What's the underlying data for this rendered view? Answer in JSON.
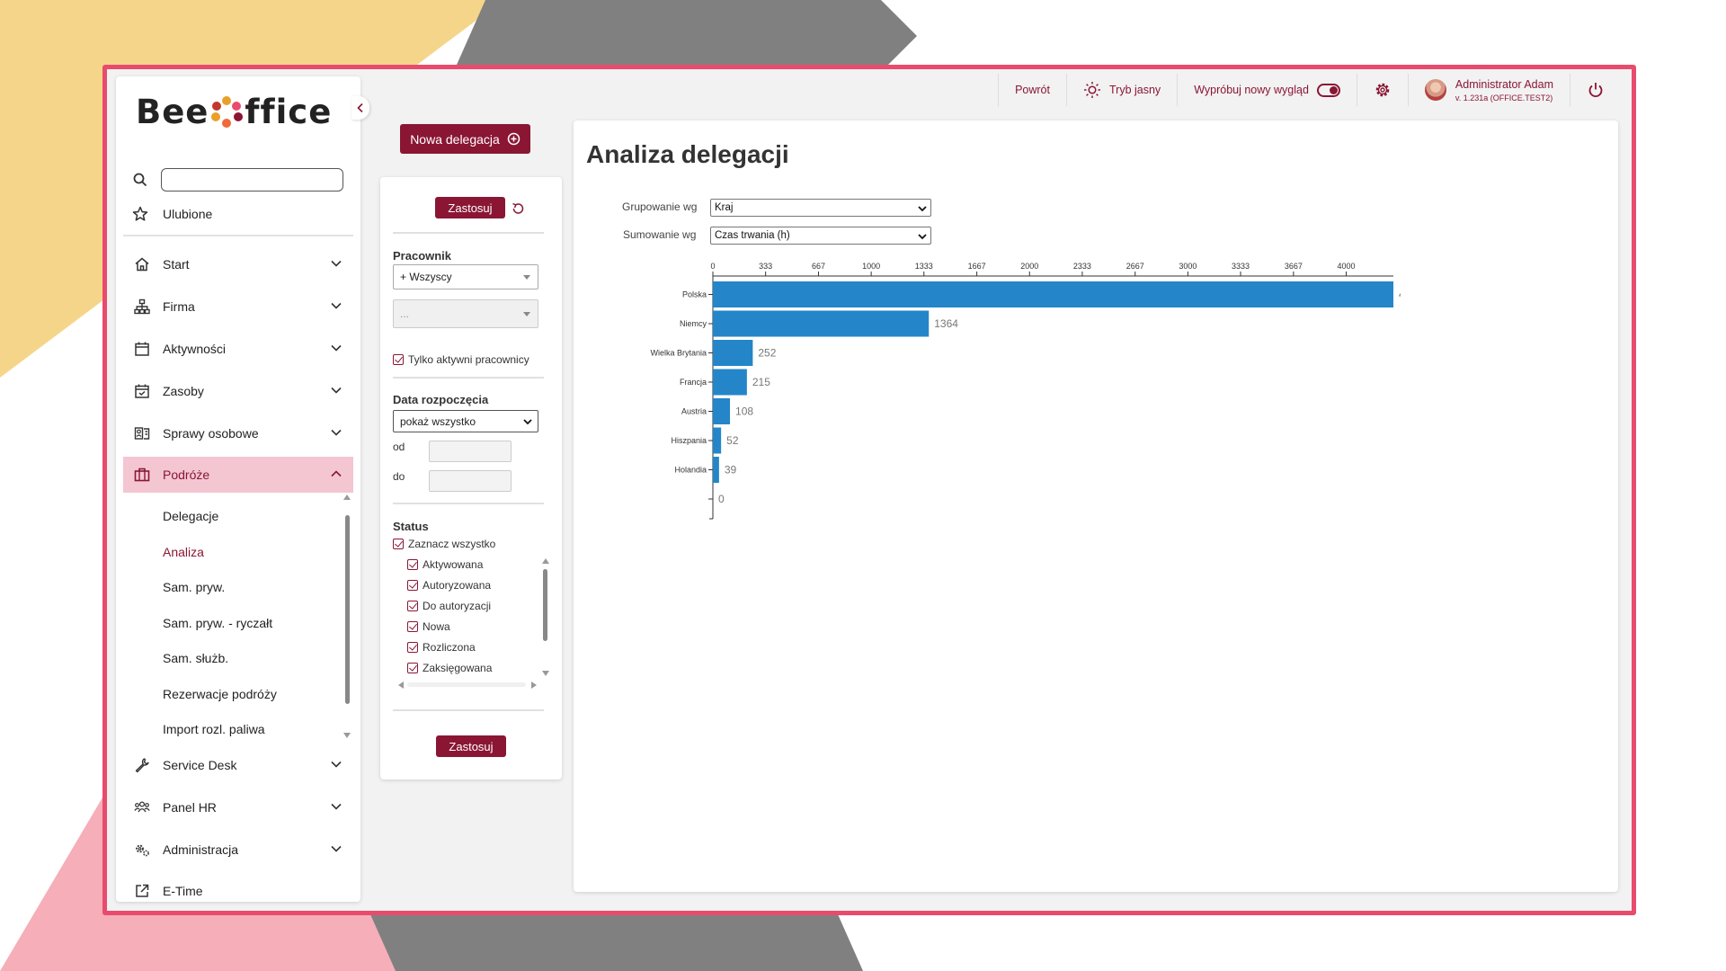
{
  "brand": {
    "logo_text_left": "Bee",
    "logo_text_right": "ffice",
    "colors": {
      "primary": "#8a1634",
      "bar": "#2486c8",
      "frame": "#e94b6d"
    }
  },
  "topbar": {
    "back_label": "Powrót",
    "theme_label": "Tryb jasny",
    "new_look_label": "Wypróbuj nowy wygląd",
    "user_name": "Administrator Adam",
    "user_version": "v. 1.231a (OFFICE.TEST2)"
  },
  "sidebar": {
    "favorites_label": "Ulubione",
    "items": [
      {
        "label": "Start",
        "icon": "home-icon"
      },
      {
        "label": "Firma",
        "icon": "org-chart-icon"
      },
      {
        "label": "Aktywności",
        "icon": "calendar-icon"
      },
      {
        "label": "Zasoby",
        "icon": "calendar-check-icon"
      },
      {
        "label": "Sprawy osobowe",
        "icon": "personnel-icon"
      },
      {
        "label": "Podróże",
        "icon": "briefcase-icon"
      },
      {
        "label": "Service Desk",
        "icon": "wrench-icon"
      },
      {
        "label": "Panel HR",
        "icon": "people-icon"
      },
      {
        "label": "Administracja",
        "icon": "gears-icon"
      },
      {
        "label": "E-Time",
        "icon": "external-link-icon"
      }
    ],
    "sub_items": [
      "Delegacje",
      "Analiza",
      "Sam. pryw.",
      "Sam. pryw. - ryczałt",
      "Sam. służb.",
      "Rezerwacje podróży",
      "Import rozl. paliwa"
    ]
  },
  "actions": {
    "new_delegation_label": "Nowa delegacja"
  },
  "filters": {
    "apply_label": "Zastosuj",
    "employee_label": "Pracownik",
    "employee_value": "+ Wszyscy",
    "employee_sub_value": "...",
    "only_active_label": "Tylko aktywni pracownicy",
    "start_date_label": "Data rozpoczęcia",
    "start_date_value": "pokaż wszystko",
    "from_label": "od",
    "to_label": "do",
    "status_label": "Status",
    "select_all_label": "Zaznacz wszystko",
    "statuses": [
      "Aktywowana",
      "Autoryzowana",
      "Do autoryzacji",
      "Nowa",
      "Rozliczona",
      "Zaksięgowana"
    ]
  },
  "main": {
    "title": "Analiza delegacji",
    "group_by_label": "Grupowanie wg",
    "group_by_value": "Kraj",
    "sum_by_label": "Sumowanie wg",
    "sum_by_value": "Czas trwania (h)"
  },
  "chart_data": {
    "type": "bar",
    "orientation": "horizontal",
    "categories": [
      "Polska",
      "Niemcy",
      "Wielka Brytania",
      "Francja",
      "Austria",
      "Hiszpania",
      "Holandia",
      ""
    ],
    "values": [
      4298,
      1364,
      252,
      215,
      108,
      52,
      39,
      0
    ],
    "x_ticks": [
      "0",
      "333",
      "667",
      "1000",
      "1333",
      "1667",
      "2000",
      "2333",
      "2667",
      "3000",
      "3333",
      "3667",
      "4000"
    ],
    "xlim": [
      0,
      4298
    ],
    "axis_position": "top",
    "grid": false,
    "title": "",
    "xlabel": "",
    "ylabel": ""
  }
}
